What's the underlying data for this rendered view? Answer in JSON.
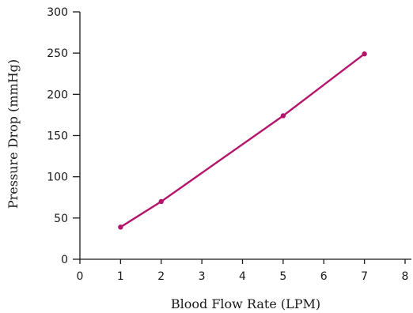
{
  "chart_data": {
    "type": "line",
    "title": "",
    "xlabel": "Blood Flow Rate (LPM)",
    "ylabel": "Pressure Drop (mmHg)",
    "xlim": [
      0,
      8
    ],
    "ylim": [
      0,
      300
    ],
    "x_ticks": [
      0,
      1,
      2,
      3,
      4,
      5,
      6,
      7,
      8
    ],
    "y_ticks": [
      0,
      50,
      100,
      150,
      200,
      250,
      300
    ],
    "grid": false,
    "legend": "none",
    "series": [
      {
        "x": [
          1,
          2,
          5,
          7
        ],
        "y": [
          39,
          70,
          174,
          249
        ],
        "color": "#b5146b",
        "markers": true
      }
    ]
  }
}
